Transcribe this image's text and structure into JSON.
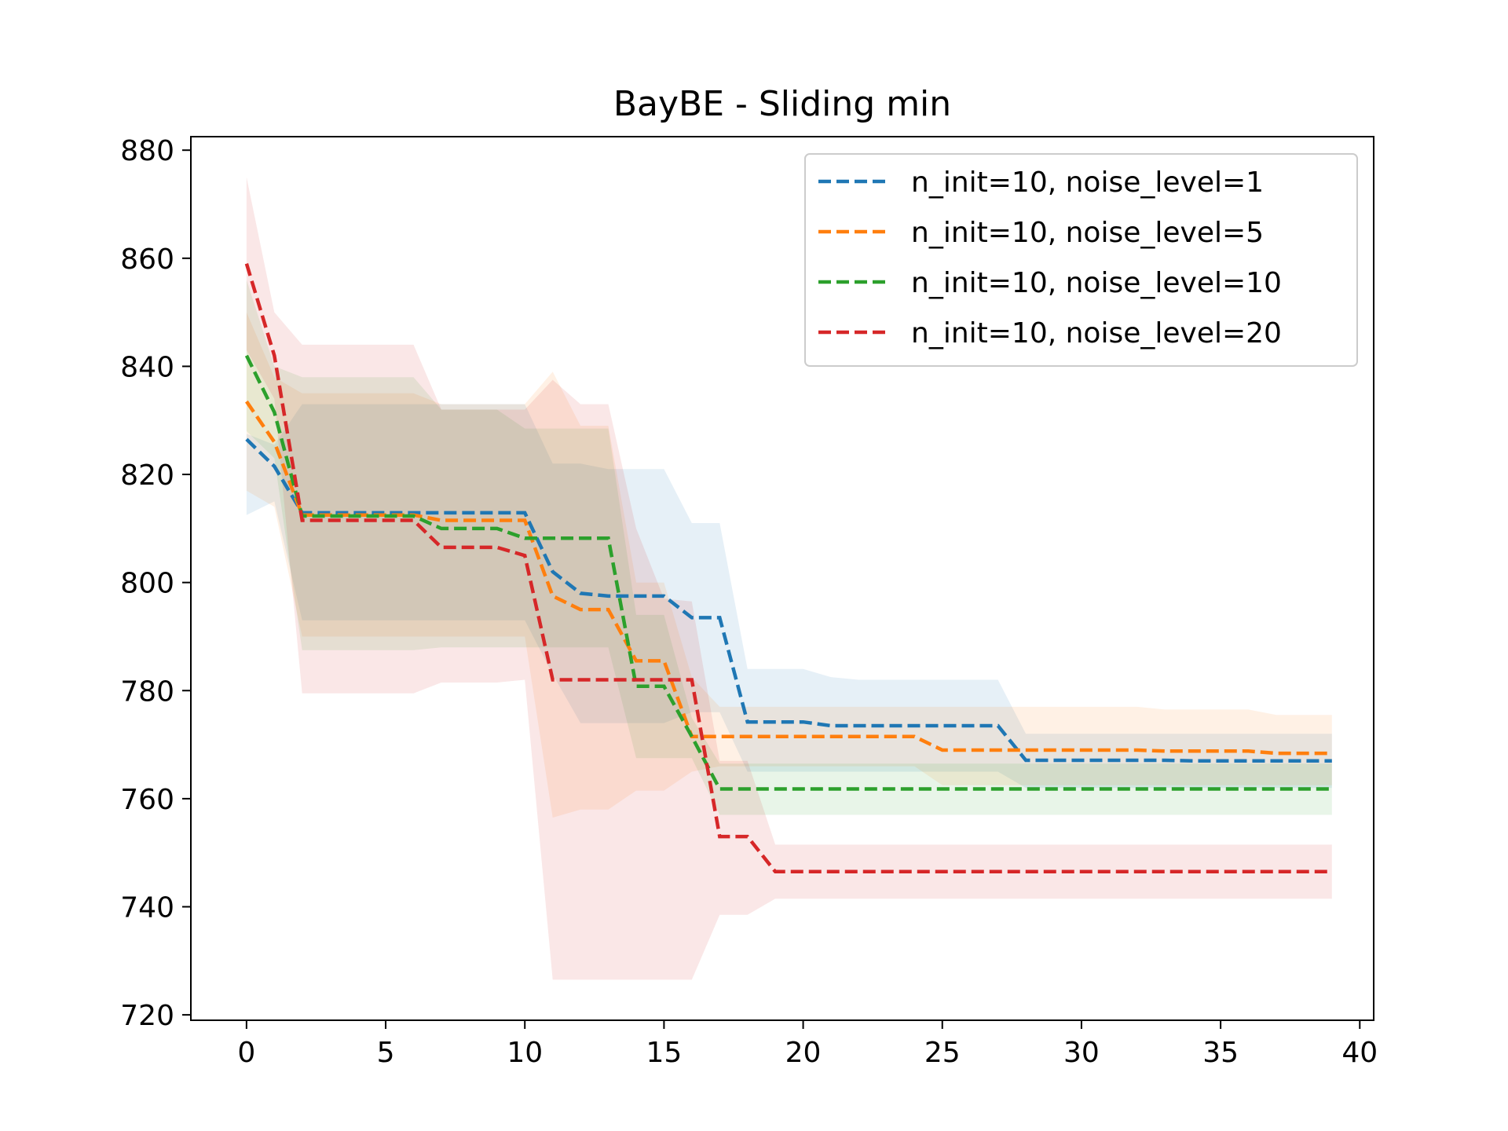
{
  "chart_data": {
    "type": "line",
    "title": "BayBE - Sliding min",
    "xlabel": "",
    "ylabel": "",
    "xlim": [
      -2,
      40.5
    ],
    "ylim": [
      719,
      882.5
    ],
    "xticks": [
      0,
      5,
      10,
      15,
      20,
      25,
      30,
      35,
      40
    ],
    "yticks": [
      720,
      740,
      760,
      780,
      800,
      820,
      840,
      860,
      880
    ],
    "grid": false,
    "legend_position": "top-right",
    "x": [
      0,
      1,
      2,
      3,
      4,
      5,
      6,
      7,
      8,
      9,
      10,
      11,
      12,
      13,
      14,
      15,
      16,
      17,
      18,
      19,
      20,
      21,
      22,
      23,
      24,
      25,
      26,
      27,
      28,
      29,
      30,
      31,
      32,
      33,
      34,
      35,
      36,
      37,
      38,
      39
    ],
    "series": [
      {
        "name": "n_init=10, noise_level=1",
        "color": "#1f77b4",
        "values": [
          826.5,
          821.5,
          812.9,
          812.9,
          812.9,
          812.9,
          812.9,
          812.9,
          812.9,
          812.9,
          812.9,
          802.0,
          798.0,
          797.5,
          797.5,
          797.5,
          793.5,
          793.5,
          774.2,
          774.2,
          774.2,
          773.5,
          773.5,
          773.5,
          773.5,
          773.5,
          773.5,
          773.5,
          767.1,
          767.1,
          767.1,
          767.1,
          767.1,
          767.1,
          767.0,
          767.0,
          767.0,
          767.0,
          767.0,
          767.0
        ],
        "upper": [
          827.5,
          825.5,
          833.0,
          833.0,
          833.0,
          833.0,
          833.0,
          833.0,
          833.0,
          833.0,
          833.0,
          822.0,
          822.0,
          821.0,
          821.0,
          821.0,
          811.0,
          811.0,
          784.0,
          784.0,
          784.0,
          782.5,
          782.0,
          782.0,
          782.0,
          782.0,
          782.0,
          782.0,
          772.0,
          772.0,
          772.0,
          772.0,
          772.0,
          772.0,
          772.0,
          772.0,
          772.0,
          772.0,
          772.0,
          772.0
        ],
        "lower": [
          812.5,
          815.0,
          793.0,
          793.0,
          793.0,
          793.0,
          793.0,
          793.0,
          793.0,
          793.0,
          793.0,
          783.0,
          774.0,
          774.0,
          774.0,
          774.0,
          776.0,
          776.0,
          765.0,
          765.0,
          765.0,
          765.0,
          765.0,
          765.0,
          765.0,
          765.0,
          765.0,
          765.0,
          762.0,
          762.0,
          762.0,
          762.0,
          762.0,
          762.0,
          762.0,
          762.0,
          762.0,
          762.0,
          762.0,
          762.0
        ]
      },
      {
        "name": "n_init=10, noise_level=5",
        "color": "#ff7f0e",
        "values": [
          833.5,
          826.0,
          812.5,
          812.5,
          812.5,
          812.5,
          812.5,
          811.5,
          811.5,
          811.5,
          811.5,
          797.5,
          795.0,
          795.0,
          785.5,
          785.5,
          771.5,
          771.5,
          771.5,
          771.5,
          771.5,
          771.5,
          771.5,
          771.5,
          771.5,
          769.0,
          769.0,
          769.0,
          769.0,
          769.0,
          769.0,
          769.0,
          769.0,
          768.8,
          768.8,
          768.8,
          768.8,
          768.4,
          768.4,
          768.4
        ],
        "upper": [
          850.0,
          838.0,
          835.0,
          835.0,
          835.0,
          835.0,
          835.0,
          833.0,
          833.0,
          833.0,
          833.0,
          839.0,
          829.0,
          829.0,
          800.0,
          800.0,
          782.5,
          777.0,
          777.0,
          777.0,
          777.0,
          777.0,
          777.0,
          777.0,
          777.0,
          777.0,
          777.0,
          777.0,
          777.0,
          777.0,
          777.0,
          777.0,
          777.0,
          776.5,
          776.5,
          776.5,
          776.5,
          775.5,
          775.5,
          775.5
        ],
        "lower": [
          817.0,
          814.0,
          790.0,
          790.0,
          790.0,
          790.0,
          790.0,
          790.0,
          790.0,
          790.0,
          790.0,
          756.5,
          758.0,
          758.0,
          761.5,
          761.5,
          765.0,
          766.0,
          766.0,
          766.0,
          766.0,
          766.0,
          766.0,
          766.0,
          766.0,
          762.5,
          762.5,
          762.5,
          762.5,
          762.5,
          762.5,
          762.5,
          762.5,
          762.5,
          762.5,
          762.5,
          762.5,
          762.5,
          762.5,
          762.5
        ]
      },
      {
        "name": "n_init=10, noise_level=10",
        "color": "#2ca02c",
        "values": [
          842.0,
          831.5,
          812.3,
          812.3,
          812.3,
          812.3,
          812.3,
          810.0,
          810.0,
          810.0,
          808.2,
          808.2,
          808.2,
          808.2,
          780.8,
          780.8,
          771.5,
          761.8,
          761.8,
          761.8,
          761.8,
          761.8,
          761.8,
          761.8,
          761.8,
          761.8,
          761.8,
          761.8,
          761.8,
          761.8,
          761.8,
          761.8,
          761.8,
          761.8,
          761.8,
          761.8,
          761.8,
          761.8,
          761.8,
          761.8
        ],
        "upper": [
          856.0,
          840.0,
          838.0,
          838.0,
          838.0,
          838.0,
          838.0,
          832.0,
          832.0,
          832.0,
          828.5,
          828.5,
          828.5,
          828.5,
          794.0,
          794.0,
          775.0,
          766.5,
          766.5,
          766.5,
          766.5,
          766.5,
          766.5,
          766.5,
          766.5,
          766.5,
          766.5,
          766.5,
          766.5,
          766.5,
          766.5,
          766.5,
          766.5,
          766.5,
          766.5,
          766.5,
          766.5,
          766.5,
          766.5,
          766.5
        ],
        "lower": [
          828.0,
          823.0,
          787.5,
          787.5,
          787.5,
          787.5,
          787.5,
          788.0,
          788.0,
          788.0,
          788.0,
          788.0,
          788.0,
          788.0,
          767.5,
          767.5,
          767.5,
          757.0,
          757.0,
          757.0,
          757.0,
          757.0,
          757.0,
          757.0,
          757.0,
          757.0,
          757.0,
          757.0,
          757.0,
          757.0,
          757.0,
          757.0,
          757.0,
          757.0,
          757.0,
          757.0,
          757.0,
          757.0,
          757.0,
          757.0
        ]
      },
      {
        "name": "n_init=10, noise_level=20",
        "color": "#d62728",
        "values": [
          859.0,
          842.0,
          811.5,
          811.5,
          811.5,
          811.5,
          811.5,
          806.5,
          806.5,
          806.5,
          805.0,
          782.0,
          782.0,
          782.0,
          782.0,
          782.0,
          782.0,
          753.0,
          753.0,
          746.5,
          746.5,
          746.5,
          746.5,
          746.5,
          746.5,
          746.5,
          746.5,
          746.5,
          746.5,
          746.5,
          746.5,
          746.5,
          746.5,
          746.5,
          746.5,
          746.5,
          746.5,
          746.5,
          746.5,
          746.5
        ],
        "upper": [
          875.0,
          850.0,
          844.0,
          844.0,
          844.0,
          844.0,
          844.0,
          832.0,
          832.0,
          832.0,
          832.0,
          837.5,
          833.0,
          833.0,
          810.0,
          797.0,
          796.5,
          767.0,
          767.0,
          751.5,
          751.5,
          751.5,
          751.5,
          751.5,
          751.5,
          751.5,
          751.5,
          751.5,
          751.5,
          751.5,
          751.5,
          751.5,
          751.5,
          751.5,
          751.5,
          751.5,
          751.5,
          751.5,
          751.5,
          751.5
        ],
        "lower": [
          843.0,
          834.0,
          779.5,
          779.5,
          779.5,
          779.5,
          779.5,
          781.5,
          781.5,
          781.5,
          782.0,
          726.5,
          726.5,
          726.5,
          726.5,
          726.5,
          726.5,
          738.5,
          738.5,
          741.5,
          741.5,
          741.5,
          741.5,
          741.5,
          741.5,
          741.5,
          741.5,
          741.5,
          741.5,
          741.5,
          741.5,
          741.5,
          741.5,
          741.5,
          741.5,
          741.5,
          741.5,
          741.5,
          741.5,
          741.5
        ]
      }
    ]
  }
}
